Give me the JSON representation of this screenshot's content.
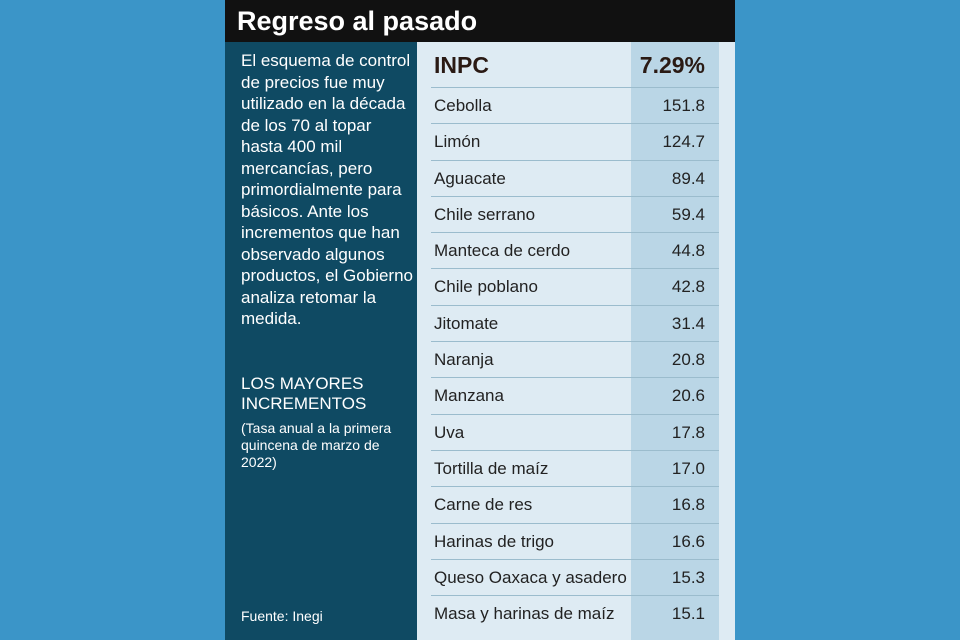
{
  "title": "Regreso al pasado",
  "intro": "El esquema de control de precios fue muy utilizado en la década de los 70 al topar hasta 400 mil mercancías, pero primordialmente para básicos. Ante los incrementos que han observado algunos productos, el Gobierno analiza retomar la medida.",
  "section_heading": "LOS MAYORES INCREMENTOS",
  "section_note": "(Tasa anual a la primera quincena de marzo de 2022)",
  "source": "Fuente: Inegi",
  "colors": {
    "background": "#3b95c8",
    "panel": "#0f4a63",
    "title_bar": "#111111",
    "table_bg": "#deebf3",
    "value_column": "#bad6e6"
  },
  "chart_data": {
    "type": "table",
    "header": {
      "label": "INPC",
      "value": "7.29%"
    },
    "rows": [
      {
        "label": "Cebolla",
        "value": "151.8"
      },
      {
        "label": "Limón",
        "value": "124.7"
      },
      {
        "label": "Aguacate",
        "value": "89.4"
      },
      {
        "label": "Chile serrano",
        "value": "59.4"
      },
      {
        "label": "Manteca de cerdo",
        "value": "44.8"
      },
      {
        "label": "Chile poblano",
        "value": "42.8"
      },
      {
        "label": "Jitomate",
        "value": "31.4"
      },
      {
        "label": "Naranja",
        "value": "20.8"
      },
      {
        "label": "Manzana",
        "value": "20.6"
      },
      {
        "label": "Uva",
        "value": "17.8"
      },
      {
        "label": "Tortilla de maíz",
        "value": "17.0"
      },
      {
        "label": "Carne de res",
        "value": "16.8"
      },
      {
        "label": "Harinas de trigo",
        "value": "16.6"
      },
      {
        "label": "Queso Oaxaca y asadero",
        "value": "15.3"
      },
      {
        "label": "Masa y harinas de maíz",
        "value": "15.1"
      }
    ]
  }
}
